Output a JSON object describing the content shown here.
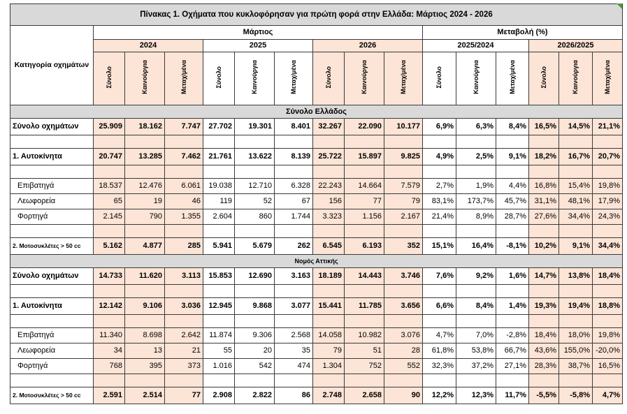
{
  "title": "Πίνακας 1. Οχήματα που κυκλοφόρησαν για πρώτη φορά στην Ελλάδα: Μάρτιος 2024 - 2026",
  "header": {
    "category": "Κατηγορία οχημάτων",
    "march": "Μάρτιος",
    "change": "Μεταβολή (%)",
    "years": [
      "2024",
      "2025",
      "2026"
    ],
    "periods": [
      "2025/2024",
      "2026/2025"
    ],
    "subcols": [
      "Σύνολο",
      "Καινούργια",
      "Μεταχ/μένα"
    ]
  },
  "sections": [
    {
      "label": "Σύνολο Ελλάδος",
      "rows": [
        {
          "label": "Σύνολο οχημάτων",
          "bold": true,
          "values": [
            "25.909",
            "18.162",
            "7.747",
            "27.702",
            "19.301",
            "8.401",
            "32.267",
            "22.090",
            "10.177",
            "6,9%",
            "6,3%",
            "8,4%",
            "16,5%",
            "14,5%",
            "21,1%"
          ]
        },
        {
          "blank": true
        },
        {
          "label": "1. Αυτοκίνητα",
          "bold": true,
          "values": [
            "20.747",
            "13.285",
            "7.462",
            "21.761",
            "13.622",
            "8.139",
            "25.722",
            "15.897",
            "9.825",
            "4,9%",
            "2,5%",
            "9,1%",
            "18,2%",
            "16,7%",
            "20,7%"
          ]
        },
        {
          "blank": true
        },
        {
          "label": "Επιβατηγά",
          "indent": true,
          "values": [
            "18.537",
            "12.476",
            "6.061",
            "19.038",
            "12.710",
            "6.328",
            "22.243",
            "14.664",
            "7.579",
            "2,7%",
            "1,9%",
            "4,4%",
            "16,8%",
            "15,4%",
            "19,8%"
          ]
        },
        {
          "label": "Λεωφορεία",
          "indent": true,
          "values": [
            "65",
            "19",
            "46",
            "119",
            "52",
            "67",
            "156",
            "77",
            "79",
            "83,1%",
            "173,7%",
            "45,7%",
            "31,1%",
            "48,1%",
            "17,9%"
          ]
        },
        {
          "label": "Φορτηγά",
          "indent": true,
          "values": [
            "2.145",
            "790",
            "1.355",
            "2.604",
            "860",
            "1.744",
            "3.323",
            "1.156",
            "2.167",
            "21,4%",
            "8,9%",
            "28,7%",
            "27,6%",
            "34,4%",
            "24,3%"
          ]
        },
        {
          "blank": true
        },
        {
          "label": "2. Μοτοσυκλέτες > 50 cc",
          "bold": true,
          "small": true,
          "values": [
            "5.162",
            "4.877",
            "285",
            "5.941",
            "5.679",
            "262",
            "6.545",
            "6.193",
            "352",
            "15,1%",
            "16,4%",
            "-8,1%",
            "10,2%",
            "9,1%",
            "34,4%"
          ]
        }
      ]
    },
    {
      "label": "Νομός Αττικής",
      "rows": [
        {
          "label": "Σύνολο οχημάτων",
          "bold": true,
          "values": [
            "14.733",
            "11.620",
            "3.113",
            "15.853",
            "12.690",
            "3.163",
            "18.189",
            "14.443",
            "3.746",
            "7,6%",
            "9,2%",
            "1,6%",
            "14,7%",
            "13,8%",
            "18,4%"
          ]
        },
        {
          "blank": true
        },
        {
          "label": "1. Αυτοκίνητα",
          "bold": true,
          "values": [
            "12.142",
            "9.106",
            "3.036",
            "12.945",
            "9.868",
            "3.077",
            "15.441",
            "11.785",
            "3.656",
            "6,6%",
            "8,4%",
            "1,4%",
            "19,3%",
            "19,4%",
            "18,8%"
          ]
        },
        {
          "blank": true
        },
        {
          "label": "Επιβατηγά",
          "indent": true,
          "values": [
            "11.340",
            "8.698",
            "2.642",
            "11.874",
            "9.306",
            "2.568",
            "14.058",
            "10.982",
            "3.076",
            "4,7%",
            "7,0%",
            "-2,8%",
            "18,4%",
            "18,0%",
            "19,8%"
          ]
        },
        {
          "label": "Λεωφορεία",
          "indent": true,
          "values": [
            "34",
            "13",
            "21",
            "55",
            "20",
            "35",
            "79",
            "51",
            "28",
            "61,8%",
            "53,8%",
            "66,7%",
            "43,6%",
            "155,0%",
            "-20,0%"
          ]
        },
        {
          "label": "Φορτηγά",
          "indent": true,
          "values": [
            "768",
            "395",
            "373",
            "1.016",
            "542",
            "474",
            "1.304",
            "752",
            "552",
            "32,3%",
            "37,2%",
            "27,1%",
            "28,3%",
            "38,7%",
            "16,5%"
          ]
        },
        {
          "blank": true
        },
        {
          "label": "2. Μοτοσυκλέτες > 50 cc",
          "bold": true,
          "small": true,
          "values": [
            "2.591",
            "2.514",
            "77",
            "2.908",
            "2.822",
            "86",
            "2.748",
            "2.658",
            "90",
            "12,2%",
            "12,3%",
            "11,7%",
            "-5,5%",
            "-5,8%",
            "4,7%"
          ]
        }
      ]
    }
  ]
}
